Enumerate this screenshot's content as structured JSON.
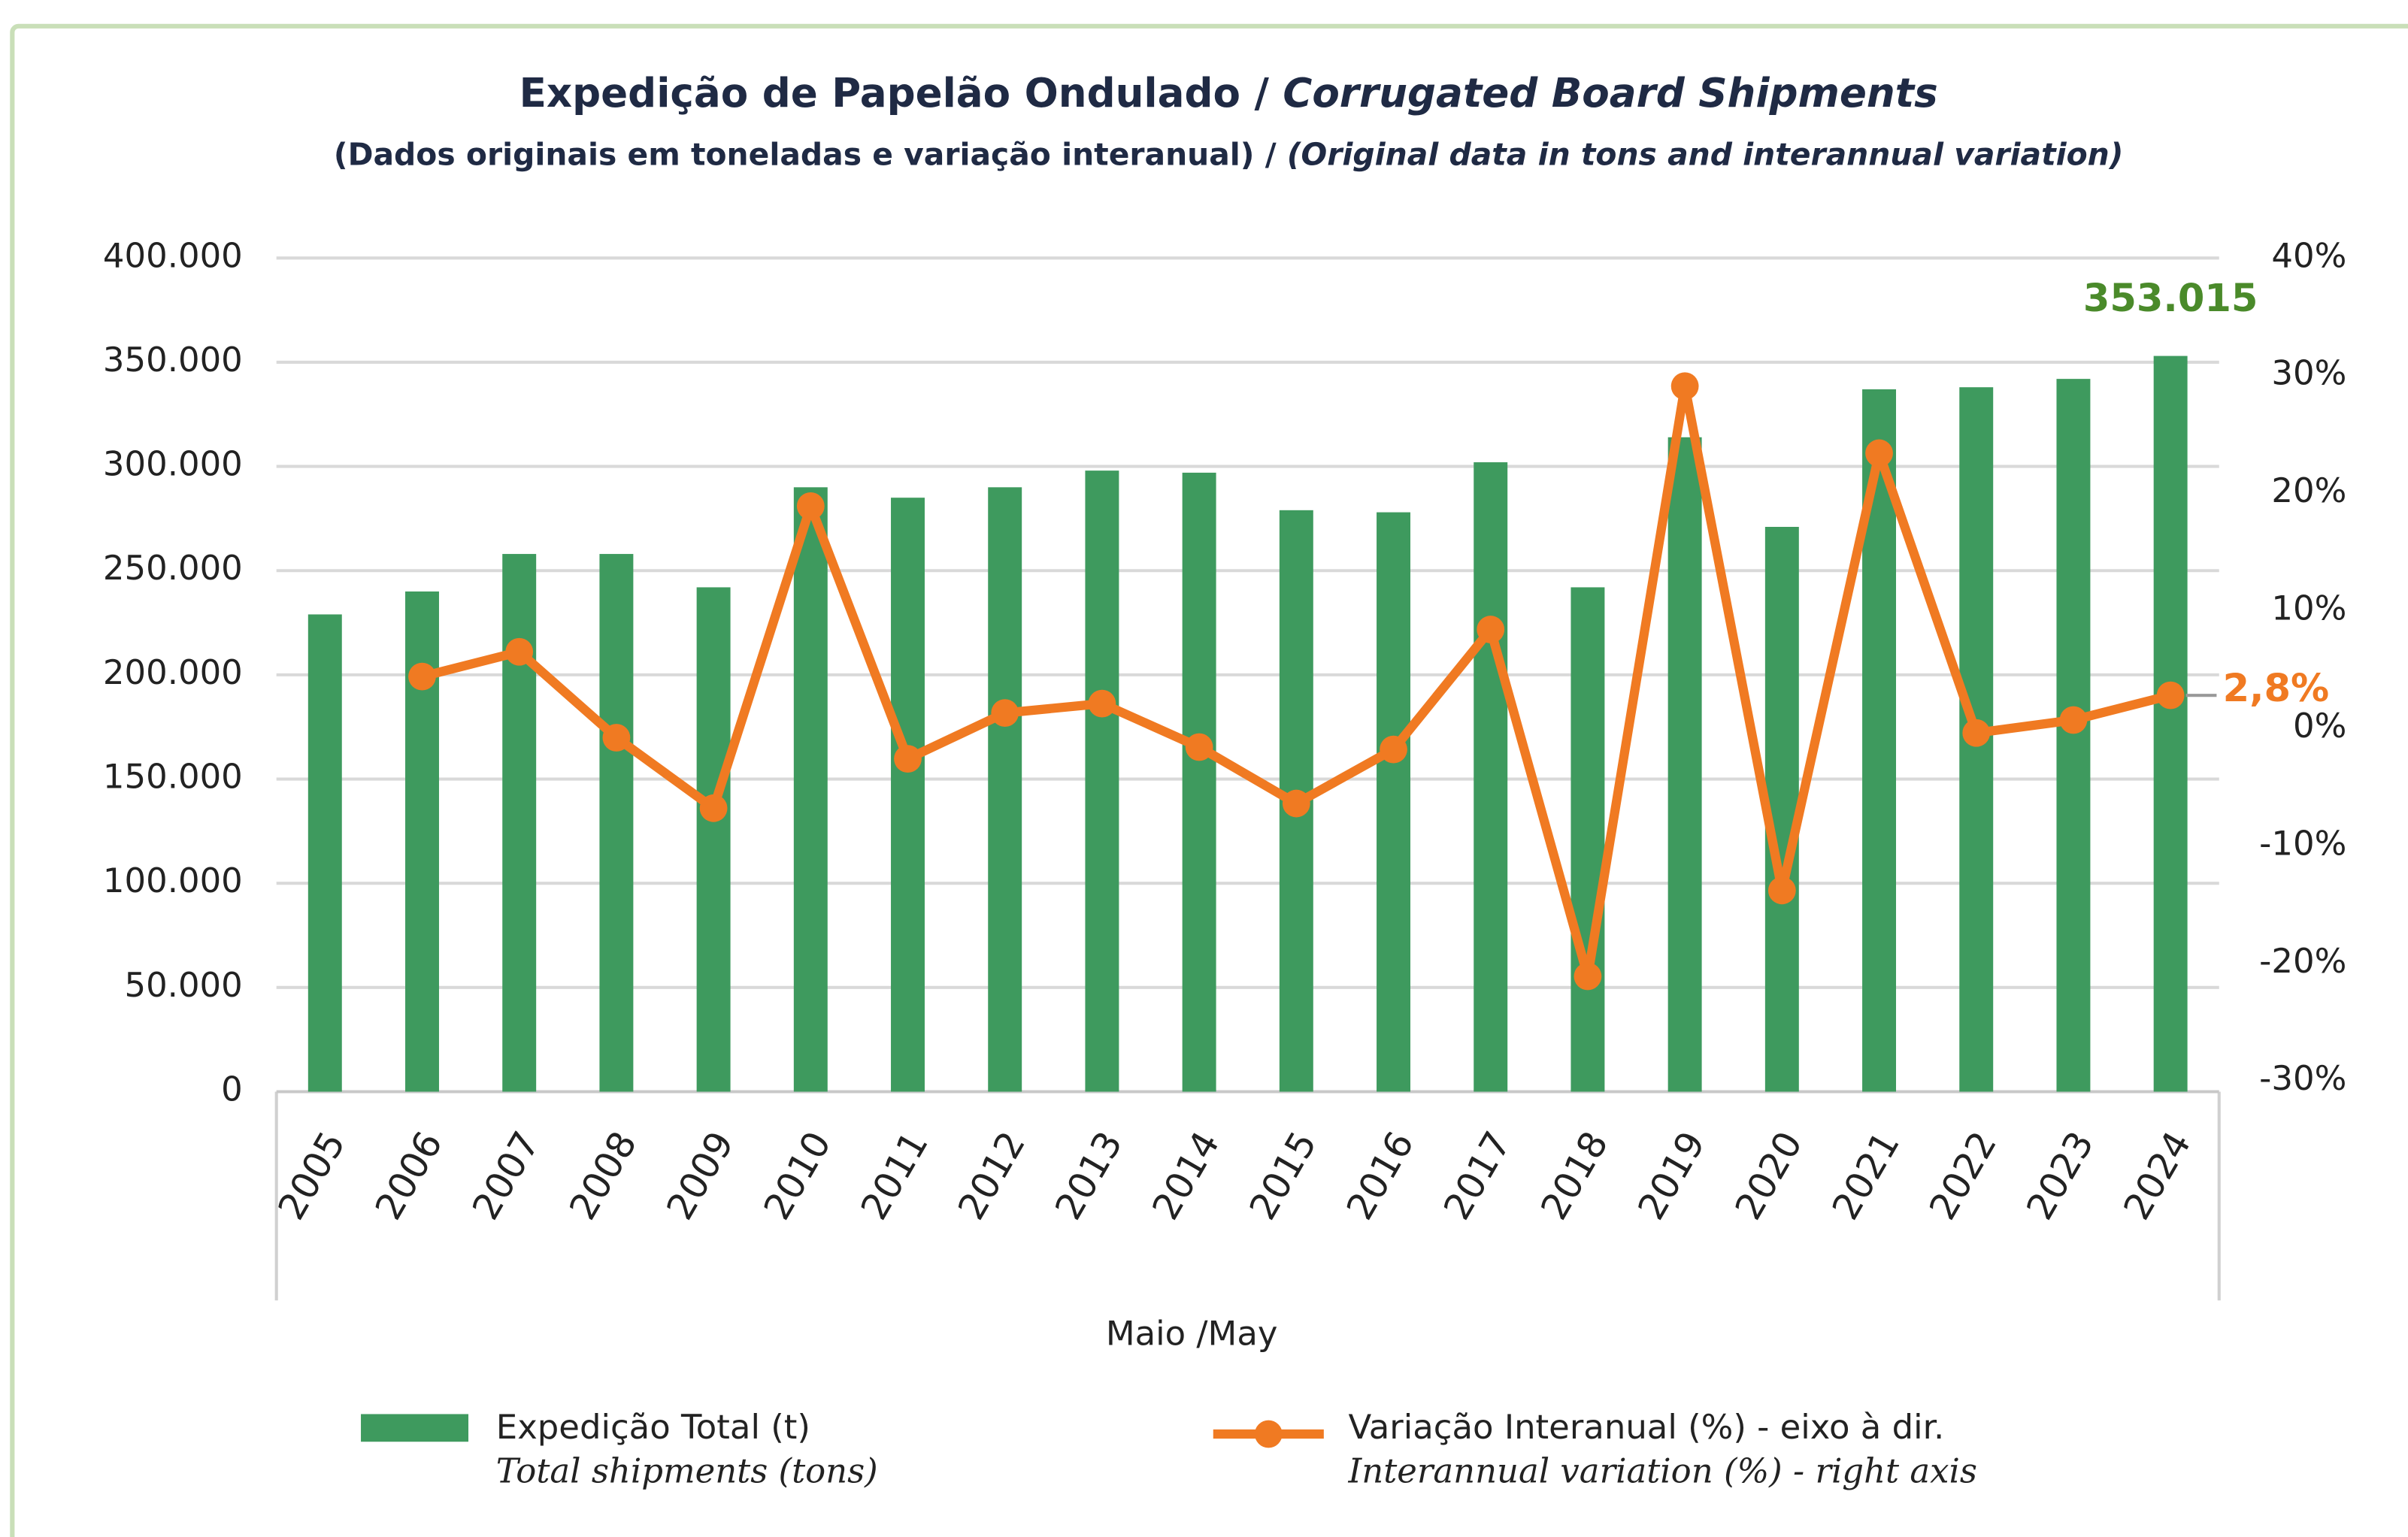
{
  "chart_data": {
    "type": "bar-line",
    "title": {
      "pt": "Expedição de Papelão Ondulado /",
      "en": "Corrugated Board Shipments"
    },
    "subtitle": {
      "pt": "(Dados originais em toneladas e variação interanual) /",
      "en": "(Original data in tons and interannual variation)"
    },
    "x_label": "Maio /May",
    "categories": [
      "2005",
      "2006",
      "2007",
      "2008",
      "2009",
      "2010",
      "2011",
      "2012",
      "2013",
      "2014",
      "2015",
      "2016",
      "2017",
      "2018",
      "2019",
      "2020",
      "2021",
      "2022",
      "2023",
      "2024"
    ],
    "series": [
      {
        "name": "Expedição Total (t)",
        "legend_note": "Total shipments (tons)",
        "type": "bar",
        "color": "#3e9a5e",
        "values": [
          229000,
          240000,
          258000,
          258000,
          242000,
          290000,
          285000,
          290000,
          298000,
          297000,
          279000,
          278000,
          302000,
          242000,
          314000,
          271000,
          337000,
          338000,
          342000,
          353015
        ],
        "value_labels": [
          null,
          null,
          null,
          null,
          null,
          null,
          null,
          null,
          null,
          null,
          null,
          null,
          null,
          null,
          null,
          null,
          null,
          null,
          null,
          "353.015"
        ],
        "label_color": "#4a8a2a"
      },
      {
        "name": "Variação Interanual (%) - eixo à dir.",
        "legend_note": "Interannual variation (%) - right axis",
        "type": "line",
        "axis": "y2",
        "color": "#f07a22",
        "values": [
          null,
          4.4,
          6.5,
          -0.8,
          -6.8,
          18.9,
          -2.6,
          1.3,
          2.1,
          -1.6,
          -6.4,
          -1.8,
          8.4,
          -21.1,
          29.1,
          -13.8,
          23.4,
          -0.4,
          0.7,
          2.8
        ],
        "value_labels": [
          null,
          null,
          null,
          null,
          null,
          null,
          null,
          null,
          null,
          null,
          null,
          null,
          null,
          null,
          null,
          null,
          null,
          null,
          null,
          "2,8%"
        ]
      }
    ],
    "ylim": [
      0,
      400000
    ],
    "yticks": [
      0,
      {
        "value": 50000,
        "label": "50.000"
      },
      {
        "value": 100000,
        "label": "100.000"
      },
      {
        "value": 150000,
        "label": "150.000"
      },
      {
        "value": 200000,
        "label": "200.000"
      },
      {
        "value": 250000,
        "label": "250.000"
      },
      {
        "value": 300000,
        "label": "300.000"
      },
      {
        "value": 350000,
        "label": "350.000"
      },
      {
        "value": 400000,
        "label": "400.000"
      }
    ],
    "y2lim": [
      -30,
      40
    ],
    "y2ticks": [
      {
        "value": -30,
        "label": "-30%"
      },
      {
        "value": -20,
        "label": "-20%"
      },
      {
        "value": -10,
        "label": "-10%"
      },
      {
        "value": 0,
        "label": "0%"
      },
      {
        "value": 10,
        "label": "10%"
      },
      {
        "value": 20,
        "label": "20%"
      },
      {
        "value": 30,
        "label": "30%"
      },
      {
        "value": 40,
        "label": "40%"
      }
    ],
    "grid": true
  }
}
